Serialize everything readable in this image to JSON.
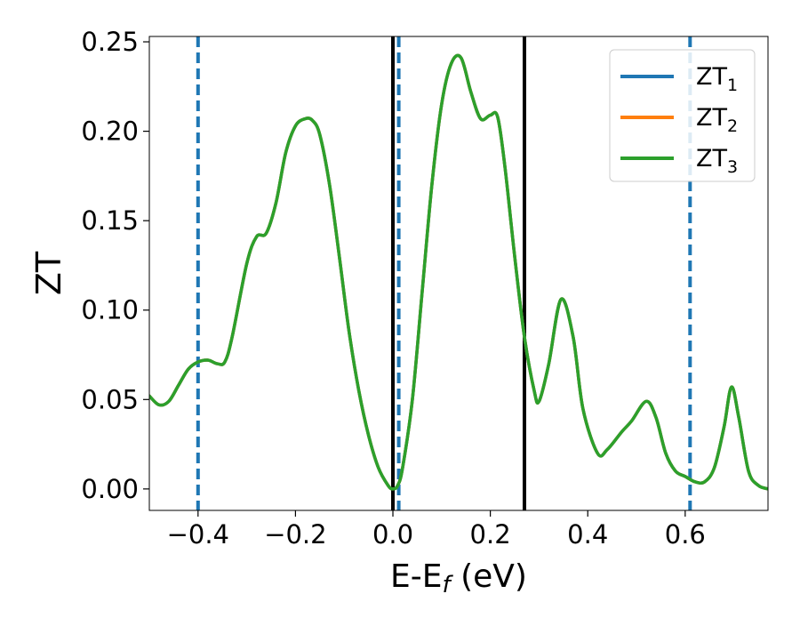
{
  "chart_data": {
    "type": "line",
    "title": "",
    "xlabel": "E-E",
    "xlabel_sub": "f",
    "xlabel_unit": " (eV)",
    "ylabel": "ZT",
    "xlim": [
      -0.5,
      0.77
    ],
    "ylim": [
      -0.012,
      0.253
    ],
    "x_ticks": [
      -0.4,
      -0.2,
      0.0,
      0.2,
      0.4,
      0.6
    ],
    "x_tick_labels": [
      "−0.4",
      "−0.2",
      "0.0",
      "0.2",
      "0.4",
      "0.6"
    ],
    "y_ticks": [
      0.0,
      0.05,
      0.1,
      0.15,
      0.2,
      0.25
    ],
    "y_tick_labels": [
      "0.00",
      "0.05",
      "0.10",
      "0.15",
      "0.20",
      "0.25"
    ],
    "grid": false,
    "legend_position": "top-right",
    "legend": [
      {
        "base": "ZT",
        "sub": "1",
        "color": "#1f77b4"
      },
      {
        "base": "ZT",
        "sub": "2",
        "color": "#ff7f0e"
      },
      {
        "base": "ZT",
        "sub": "3",
        "color": "#2ca02c"
      }
    ],
    "vlines": [
      {
        "x": -0.4,
        "style": "dashed",
        "color": "#1f77b4"
      },
      {
        "x": 0.012,
        "style": "dashed",
        "color": "#1f77b4"
      },
      {
        "x": 0.61,
        "style": "dashed",
        "color": "#1f77b4"
      },
      {
        "x": 0.0,
        "style": "solid",
        "color": "#000000"
      },
      {
        "x": 0.27,
        "style": "solid",
        "color": "#000000"
      }
    ],
    "x": [
      -0.5,
      -0.48,
      -0.46,
      -0.44,
      -0.42,
      -0.4,
      -0.38,
      -0.36,
      -0.345,
      -0.33,
      -0.3,
      -0.28,
      -0.26,
      -0.24,
      -0.22,
      -0.2,
      -0.18,
      -0.165,
      -0.15,
      -0.13,
      -0.11,
      -0.09,
      -0.07,
      -0.05,
      -0.03,
      -0.01,
      0.0,
      0.01,
      0.02,
      0.04,
      0.06,
      0.08,
      0.1,
      0.12,
      0.14,
      0.16,
      0.18,
      0.2,
      0.215,
      0.23,
      0.25,
      0.27,
      0.29,
      0.3,
      0.32,
      0.345,
      0.37,
      0.39,
      0.42,
      0.44,
      0.47,
      0.49,
      0.52,
      0.54,
      0.56,
      0.58,
      0.6,
      0.62,
      0.64,
      0.66,
      0.68,
      0.695,
      0.71,
      0.73,
      0.75,
      0.77
    ],
    "series": [
      {
        "name": "ZT₁",
        "color": "#1f77b4",
        "values": [
          0.052,
          0.047,
          0.049,
          0.058,
          0.067,
          0.071,
          0.072,
          0.07,
          0.071,
          0.085,
          0.126,
          0.141,
          0.143,
          0.16,
          0.188,
          0.203,
          0.207,
          0.206,
          0.198,
          0.17,
          0.13,
          0.088,
          0.055,
          0.03,
          0.012,
          0.002,
          0.0,
          0.002,
          0.012,
          0.05,
          0.11,
          0.17,
          0.215,
          0.238,
          0.241,
          0.222,
          0.207,
          0.209,
          0.208,
          0.18,
          0.13,
          0.085,
          0.055,
          0.049,
          0.07,
          0.106,
          0.085,
          0.045,
          0.02,
          0.022,
          0.032,
          0.038,
          0.049,
          0.04,
          0.02,
          0.01,
          0.007,
          0.004,
          0.004,
          0.012,
          0.035,
          0.057,
          0.04,
          0.01,
          0.002,
          0.0
        ]
      },
      {
        "name": "ZT₂",
        "color": "#ff7f0e",
        "values": [
          0.052,
          0.047,
          0.049,
          0.058,
          0.067,
          0.071,
          0.072,
          0.07,
          0.071,
          0.085,
          0.126,
          0.141,
          0.143,
          0.16,
          0.188,
          0.203,
          0.207,
          0.206,
          0.198,
          0.17,
          0.13,
          0.088,
          0.055,
          0.03,
          0.012,
          0.002,
          0.0,
          0.002,
          0.012,
          0.05,
          0.11,
          0.17,
          0.215,
          0.238,
          0.241,
          0.222,
          0.207,
          0.209,
          0.208,
          0.18,
          0.13,
          0.085,
          0.055,
          0.049,
          0.07,
          0.106,
          0.085,
          0.045,
          0.02,
          0.022,
          0.032,
          0.038,
          0.049,
          0.04,
          0.02,
          0.01,
          0.007,
          0.004,
          0.004,
          0.012,
          0.035,
          0.057,
          0.04,
          0.01,
          0.002,
          0.0
        ]
      },
      {
        "name": "ZT₃",
        "color": "#2ca02c",
        "values": [
          0.052,
          0.047,
          0.049,
          0.058,
          0.067,
          0.071,
          0.072,
          0.07,
          0.071,
          0.085,
          0.126,
          0.141,
          0.143,
          0.16,
          0.188,
          0.203,
          0.207,
          0.206,
          0.198,
          0.17,
          0.13,
          0.088,
          0.055,
          0.03,
          0.012,
          0.002,
          0.0,
          0.002,
          0.012,
          0.05,
          0.11,
          0.17,
          0.215,
          0.238,
          0.241,
          0.222,
          0.207,
          0.209,
          0.208,
          0.18,
          0.13,
          0.085,
          0.055,
          0.049,
          0.07,
          0.106,
          0.085,
          0.045,
          0.02,
          0.022,
          0.032,
          0.038,
          0.049,
          0.04,
          0.02,
          0.01,
          0.007,
          0.004,
          0.004,
          0.012,
          0.035,
          0.057,
          0.04,
          0.01,
          0.002,
          0.0
        ]
      }
    ]
  }
}
